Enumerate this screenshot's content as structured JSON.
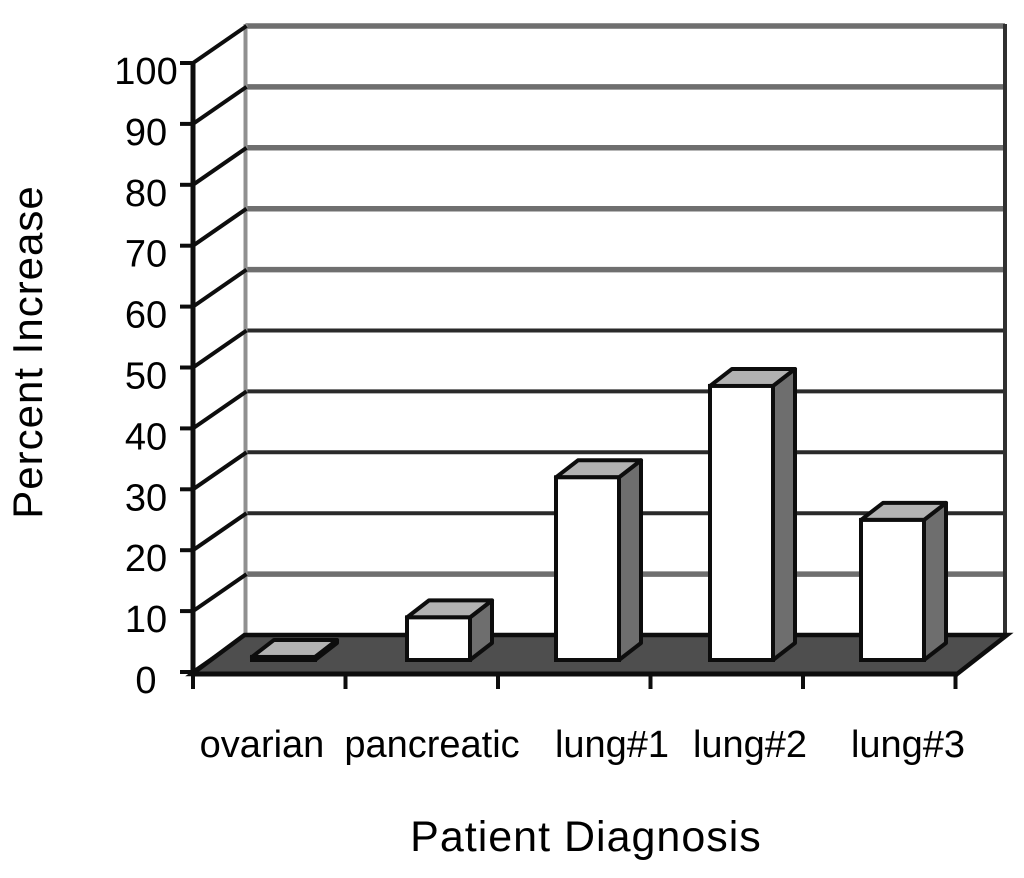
{
  "chart_data": {
    "type": "bar",
    "style": "3d-column",
    "title": "",
    "xlabel": "Patient Diagnosis",
    "ylabel": "Percent Increase",
    "categories": [
      "ovarian",
      "pancreatic",
      "lung#1",
      "lung#2",
      "lung#3"
    ],
    "values": [
      0.5,
      7,
      30,
      45,
      23
    ],
    "yticks": [
      0,
      10,
      20,
      30,
      40,
      50,
      60,
      70,
      80,
      90,
      100
    ],
    "ylim": [
      0,
      100
    ],
    "grid": true,
    "legend": false,
    "colors": {
      "background": "#ffffff",
      "wall": "#ffffff",
      "floor": "#4e4e4e",
      "bar_front": "#ffffff",
      "bar_side": "#6e6e6e",
      "bar_top": "#b2b2b2",
      "gridline_light": "#6f6f6f",
      "gridline_dark": "#2a2a2a",
      "axis": "#0d0d0d",
      "text": "#000000"
    }
  }
}
